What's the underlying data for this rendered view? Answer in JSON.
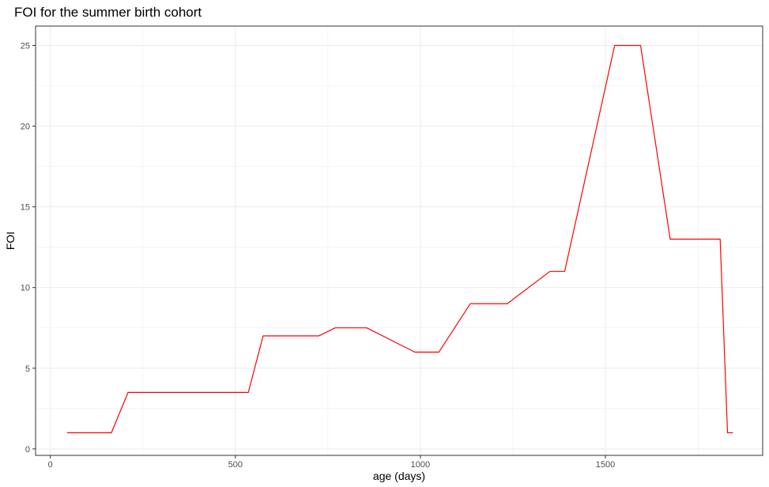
{
  "chart_data": {
    "type": "line",
    "title": "FOI for the summer birth cohort",
    "xlabel": "age (days)",
    "ylabel": "FOI",
    "xlim": [
      -40,
      1925
    ],
    "ylim": [
      -0.4,
      26.2
    ],
    "xticks": [
      0,
      500,
      1000,
      1500
    ],
    "yticks": [
      0,
      5,
      10,
      15,
      20,
      25
    ],
    "xticks_minor": [
      250,
      750,
      1250,
      1750
    ],
    "yticks_minor": [
      2.5,
      7.5,
      12.5,
      17.5,
      22.5
    ],
    "grid": true,
    "series": [
      {
        "color": "#ff0000",
        "x": [
          45,
          165,
          210,
          535,
          575,
          725,
          770,
          855,
          985,
          1050,
          1135,
          1235,
          1350,
          1390,
          1525,
          1595,
          1675,
          1810,
          1830,
          1845
        ],
        "y": [
          1,
          1,
          3.5,
          3.5,
          7,
          7,
          7.5,
          7.5,
          6,
          6,
          9,
          9,
          11,
          11,
          25,
          25,
          13,
          13,
          1,
          1
        ]
      }
    ]
  }
}
